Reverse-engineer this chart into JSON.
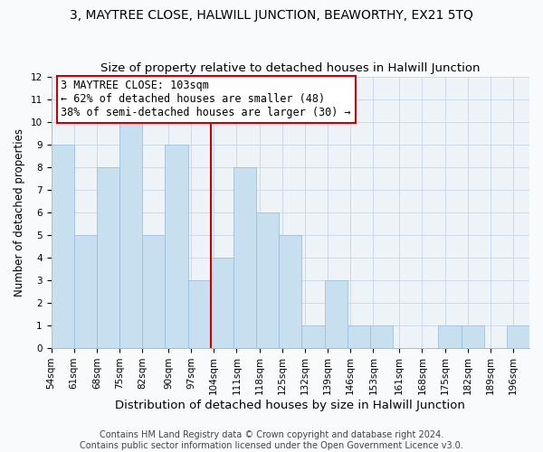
{
  "title": "3, MAYTREE CLOSE, HALWILL JUNCTION, BEAWORTHY, EX21 5TQ",
  "subtitle": "Size of property relative to detached houses in Halwill Junction",
  "xlabel": "Distribution of detached houses by size in Halwill Junction",
  "ylabel": "Number of detached properties",
  "bin_edges": [
    54,
    61,
    68,
    75,
    82,
    89,
    96,
    103,
    110,
    117,
    124,
    131,
    138,
    145,
    152,
    159,
    166,
    173,
    180,
    187,
    194,
    201
  ],
  "bin_labels": [
    "54sqm",
    "61sqm",
    "68sqm",
    "75sqm",
    "82sqm",
    "90sqm",
    "97sqm",
    "104sqm",
    "111sqm",
    "118sqm",
    "125sqm",
    "132sqm",
    "139sqm",
    "146sqm",
    "153sqm",
    "161sqm",
    "168sqm",
    "175sqm",
    "182sqm",
    "189sqm",
    "196sqm"
  ],
  "heights": [
    9,
    5,
    8,
    10,
    5,
    9,
    3,
    4,
    8,
    6,
    5,
    1,
    3,
    1,
    1,
    0,
    0,
    1,
    1,
    0,
    1
  ],
  "bar_color": "#c8dff0",
  "bar_edge_color": "#a0c0dc",
  "grid_color": "#ccd8e8",
  "background_color": "#eef3f8",
  "vline_x": 103,
  "vline_color": "#cc0000",
  "ylim": [
    0,
    12
  ],
  "yticks": [
    0,
    1,
    2,
    3,
    4,
    5,
    6,
    7,
    8,
    9,
    10,
    11,
    12
  ],
  "annotation_title": "3 MAYTREE CLOSE: 103sqm",
  "annotation_line1": "← 62% of detached houses are smaller (48)",
  "annotation_line2": "38% of semi-detached houses are larger (30) →",
  "annotation_box_color": "#ffffff",
  "annotation_box_edge": "#cc0000",
  "footer_line1": "Contains HM Land Registry data © Crown copyright and database right 2024.",
  "footer_line2": "Contains public sector information licensed under the Open Government Licence v3.0.",
  "title_fontsize": 10,
  "subtitle_fontsize": 9.5,
  "xlabel_fontsize": 9.5,
  "ylabel_fontsize": 8.5,
  "tick_fontsize": 7.5,
  "annotation_fontsize": 8.5,
  "footer_fontsize": 7
}
